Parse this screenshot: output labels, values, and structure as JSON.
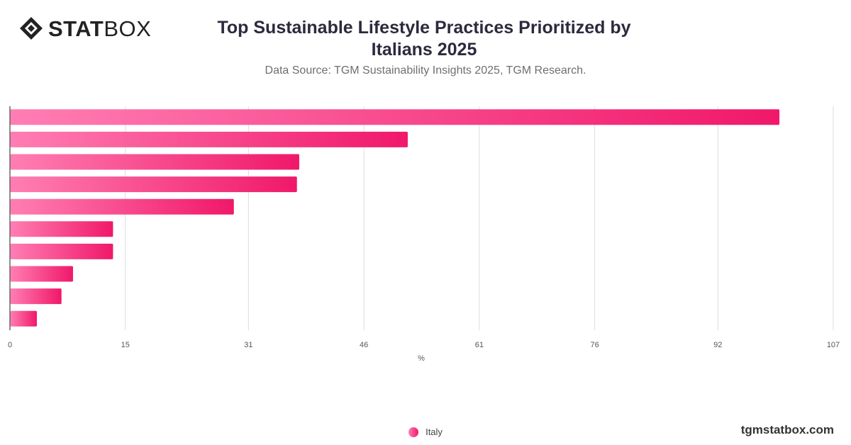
{
  "header": {
    "logo_bold": "STAT",
    "logo_light": "BOX",
    "title_line1": "Top Sustainable Lifestyle Practices Prioritized by",
    "title_line2": "Italians 2025",
    "subtitle": "Data Source: TGM Sustainability Insights 2025, TGM Research."
  },
  "footer": {
    "legend_label": "Italy",
    "brand": "tgmstatbox.com"
  },
  "chart_data": {
    "type": "bar",
    "orientation": "horizontal",
    "title": "Top Sustainable Lifestyle Practices Prioritized by Italians 2025",
    "xlabel": "%",
    "ylabel": "",
    "xlim": [
      0,
      107
    ],
    "ticks": [
      0,
      15,
      31,
      46,
      61,
      76,
      92,
      107
    ],
    "grid": true,
    "legend_position": "bottom",
    "series": [
      {
        "name": "Italy",
        "values": [
          100,
          51.7,
          37.6,
          37.3,
          29.1,
          13.4,
          13.4,
          8.2,
          6.7,
          3.5
        ]
      }
    ],
    "colors": {
      "bar_start": "#ff7eb3",
      "bar_end": "#f0186a",
      "grid": "#dddddd",
      "axis": "#444444"
    }
  }
}
